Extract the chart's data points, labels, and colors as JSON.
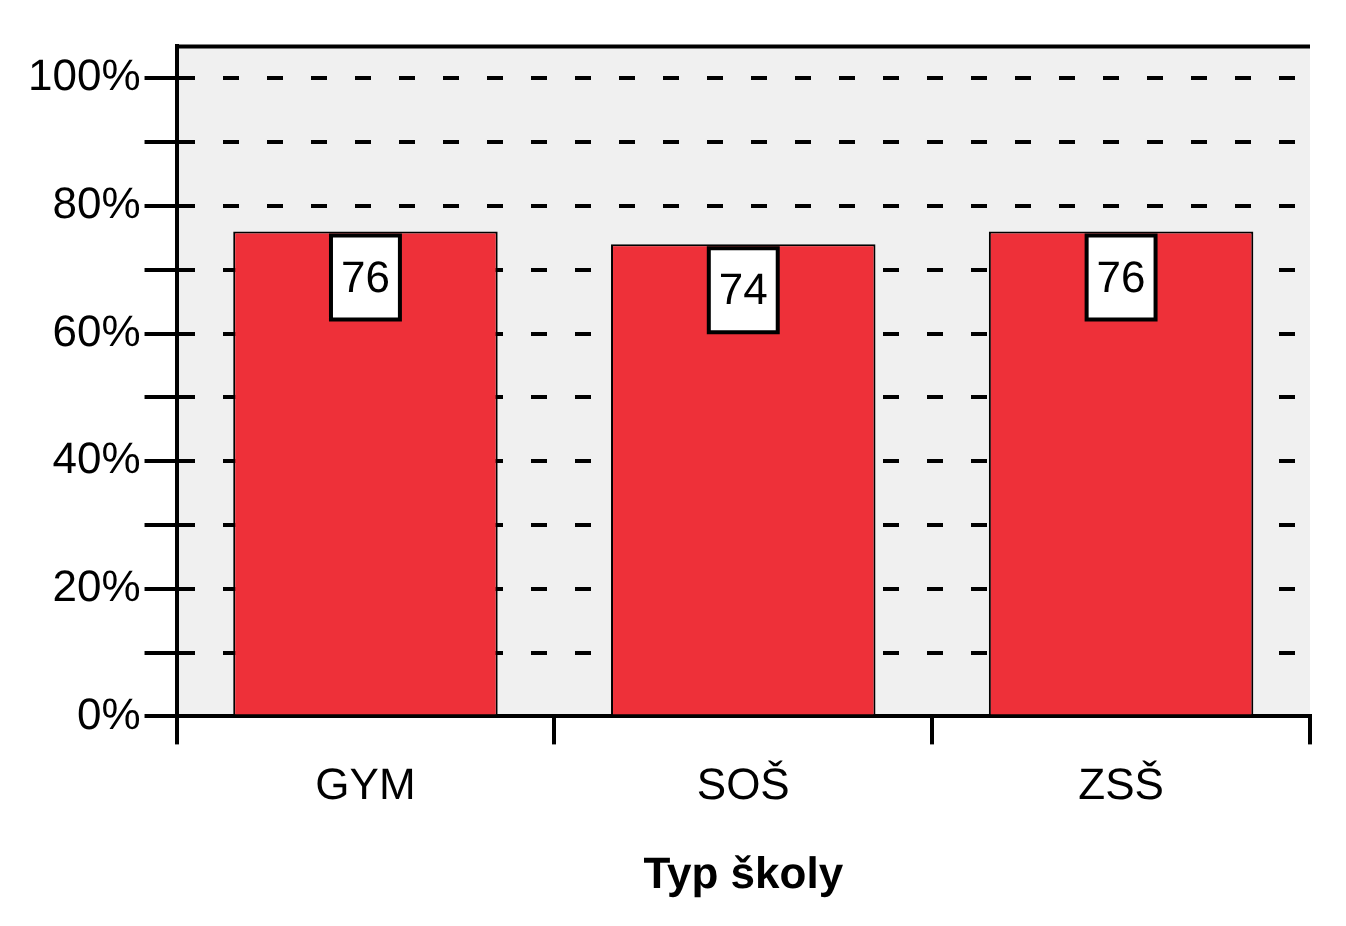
{
  "chart_data": {
    "type": "bar",
    "xlabel": "Typ školy",
    "categories": [
      "GYM",
      "SOŠ",
      "ZSŠ"
    ],
    "values": [
      76,
      74,
      76
    ],
    "color": "#ee3039",
    "ylim": [
      0,
      105
    ],
    "yticks": [
      {
        "value": 0,
        "label": "0%"
      },
      {
        "value": 10,
        "label": null
      },
      {
        "value": 20,
        "label": "20%"
      },
      {
        "value": 30,
        "label": null
      },
      {
        "value": 40,
        "label": "40%"
      },
      {
        "value": 50,
        "label": null
      },
      {
        "value": 60,
        "label": "60%"
      },
      {
        "value": 70,
        "label": null
      },
      {
        "value": 80,
        "label": "80%"
      },
      {
        "value": 90,
        "label": null
      },
      {
        "value": 100,
        "label": "100%"
      }
    ],
    "grid": "y",
    "legend": false,
    "data_labels": true
  }
}
